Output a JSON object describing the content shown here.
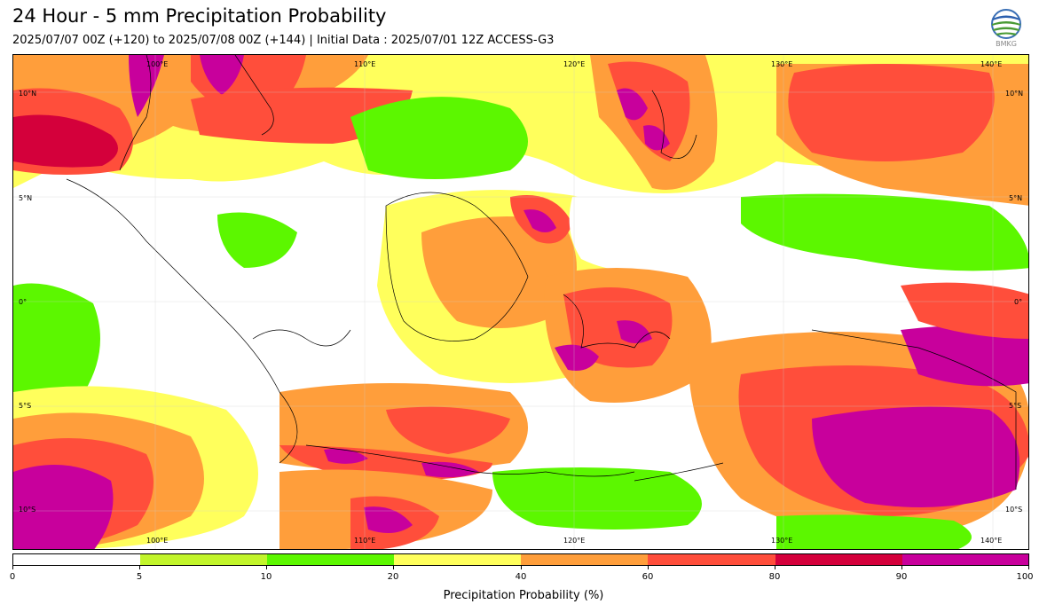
{
  "header": {
    "title": "24 Hour - 5 mm Precipitation Probability",
    "subtitle": "2025/07/07 00Z (+120) to 2025/07/08 00Z (+144) | Initial Data : 2025/07/01 12Z ACCESS-G3"
  },
  "logo": {
    "icon": "bmkg-globe-icon",
    "text": "BMKG"
  },
  "map": {
    "longitude_labels_top": [
      "100°E",
      "110°E",
      "120°E",
      "130°E",
      "140°E"
    ],
    "longitude_labels_bottom": [
      "100°E",
      "110°E",
      "120°E",
      "130°E",
      "140°E"
    ],
    "latitude_labels_left": [
      "10°N",
      "5°N",
      "0°",
      "5°S",
      "10°S"
    ],
    "latitude_labels_right": [
      "10°N",
      "5°N",
      "0°",
      "5°S",
      "10°S"
    ],
    "legend_colors": {
      "0-5": "#ffffff",
      "5-10": "#c2f52b",
      "10-20": "#5cf700",
      "20-40": "#ffff5c",
      "40-60": "#ff9e3b",
      "60-80": "#ff4e3b",
      "80-90": "#d4003b",
      "90-100": "#c8009c"
    }
  },
  "colorbar": {
    "ticks": [
      "0",
      "5",
      "10",
      "20",
      "40",
      "60",
      "80",
      "90",
      "100"
    ],
    "label": "Precipitation Probability (%)"
  }
}
